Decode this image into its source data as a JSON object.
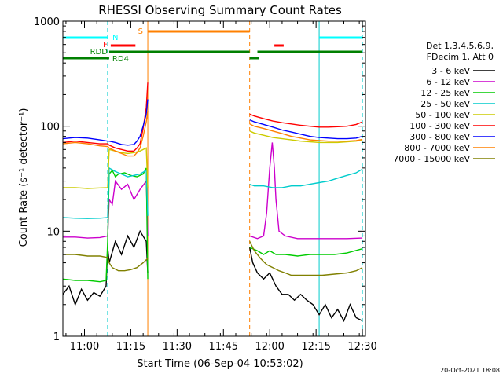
{
  "chart_data": {
    "type": "line",
    "title": "RHESSI Observing Summary Count Rates",
    "xlabel": "Start Time (06-Sep-04 10:53:02)",
    "ylabel": "Count Rate (s⁻¹ detector⁻¹)",
    "yscale": "log",
    "ylim": [
      1,
      1000
    ],
    "xlim": [
      0,
      98
    ],
    "x_unit": "minutes after 10:53:02",
    "x_ticks": [
      {
        "t": 7,
        "label": "11:00"
      },
      {
        "t": 22,
        "label": "11:15"
      },
      {
        "t": 37,
        "label": "11:30"
      },
      {
        "t": 52,
        "label": "11:45"
      },
      {
        "t": 67,
        "label": "12:00"
      },
      {
        "t": 82,
        "label": "12:15"
      },
      {
        "t": 97,
        "label": "12:30"
      }
    ],
    "y_ticks": [
      {
        "v": 1,
        "label": "1"
      },
      {
        "v": 10,
        "label": "10"
      },
      {
        "v": 100,
        "label": "100"
      },
      {
        "v": 1000,
        "label": "1000"
      }
    ],
    "legend_header": [
      "Det 1,3,4,5,6,9,",
      "FDecim 1, Att 0"
    ],
    "legend_placement": "right",
    "series": [
      {
        "name": "3 - 6 keV",
        "color": "#000000",
        "points": [
          [
            0,
            2.5
          ],
          [
            2,
            3
          ],
          [
            4,
            2
          ],
          [
            6,
            2.8
          ],
          [
            8,
            2.2
          ],
          [
            10,
            2.6
          ],
          [
            12,
            2.4
          ],
          [
            14,
            3
          ],
          [
            14.5,
            7
          ],
          [
            15,
            5
          ],
          [
            17,
            8
          ],
          [
            19,
            6
          ],
          [
            21,
            9
          ],
          [
            23,
            7
          ],
          [
            25,
            10
          ],
          [
            27,
            8
          ],
          [
            27.5,
            4
          ],
          null,
          [
            60.5,
            7
          ],
          [
            61.5,
            5
          ],
          [
            63,
            4
          ],
          [
            65,
            3.5
          ],
          [
            67,
            4
          ],
          [
            69,
            3
          ],
          [
            71,
            2.5
          ],
          [
            73,
            2.5
          ],
          [
            75,
            2.2
          ],
          [
            77,
            2.5
          ],
          [
            79,
            2.2
          ],
          [
            81,
            2
          ],
          [
            83,
            1.6
          ],
          [
            85,
            2
          ],
          [
            87,
            1.5
          ],
          [
            89,
            1.8
          ],
          [
            91,
            1.4
          ],
          [
            93,
            2
          ],
          [
            95,
            1.5
          ],
          [
            97,
            1.4
          ]
        ]
      },
      {
        "name": "6 - 12 keV",
        "color": "#cc00cc",
        "points": [
          [
            0,
            8.8
          ],
          [
            4,
            8.8
          ],
          [
            8,
            8.6
          ],
          [
            12,
            8.7
          ],
          [
            14.5,
            9
          ],
          [
            15,
            20
          ],
          [
            16,
            18
          ],
          [
            17,
            30
          ],
          [
            19,
            25
          ],
          [
            21,
            28
          ],
          [
            23,
            20
          ],
          [
            25,
            25
          ],
          [
            27,
            30
          ],
          [
            27.5,
            9
          ],
          null,
          [
            60.5,
            9
          ],
          [
            63,
            8.5
          ],
          [
            65,
            9
          ],
          [
            66,
            15
          ],
          [
            67,
            40
          ],
          [
            67.8,
            70
          ],
          [
            68.5,
            40
          ],
          [
            69,
            20
          ],
          [
            70,
            10
          ],
          [
            72,
            9
          ],
          [
            76,
            8.5
          ],
          [
            80,
            8.5
          ],
          [
            84,
            8.5
          ],
          [
            88,
            8.5
          ],
          [
            92,
            8.5
          ],
          [
            97,
            8.6
          ]
        ]
      },
      {
        "name": "12 - 25 keV",
        "color": "#00cc00",
        "points": [
          [
            0,
            3.5
          ],
          [
            4,
            3.4
          ],
          [
            8,
            3.4
          ],
          [
            12,
            3.3
          ],
          [
            14,
            3.4
          ],
          [
            14.5,
            8
          ],
          [
            15,
            35
          ],
          [
            16,
            38
          ],
          [
            17,
            33
          ],
          [
            18,
            35
          ],
          [
            20,
            36
          ],
          [
            22,
            34
          ],
          [
            24,
            33
          ],
          [
            26,
            35
          ],
          [
            27,
            40
          ],
          [
            27.5,
            3.5
          ],
          null,
          [
            60.5,
            7
          ],
          [
            63,
            6.5
          ],
          [
            65,
            6
          ],
          [
            67,
            6.5
          ],
          [
            69,
            6
          ],
          [
            72,
            6
          ],
          [
            76,
            5.8
          ],
          [
            80,
            6
          ],
          [
            84,
            6
          ],
          [
            88,
            6
          ],
          [
            92,
            6.2
          ],
          [
            97,
            6.8
          ]
        ]
      },
      {
        "name": "25 - 50 keV",
        "color": "#00cccc",
        "points": [
          [
            0,
            13.5
          ],
          [
            4,
            13.3
          ],
          [
            8,
            13.2
          ],
          [
            12,
            13.3
          ],
          [
            14.5,
            13.5
          ],
          [
            15,
            40
          ],
          [
            17,
            37
          ],
          [
            19,
            35
          ],
          [
            21,
            33
          ],
          [
            23,
            34
          ],
          [
            25,
            35
          ],
          [
            27,
            38
          ],
          [
            27.5,
            14
          ],
          null,
          [
            60.5,
            28
          ],
          [
            62,
            27
          ],
          [
            65,
            27
          ],
          [
            68,
            26
          ],
          [
            71,
            26
          ],
          [
            74,
            27
          ],
          [
            77,
            27
          ],
          [
            80,
            28
          ],
          [
            83,
            29
          ],
          [
            86,
            30
          ],
          [
            89,
            32
          ],
          [
            92,
            34
          ],
          [
            95,
            36
          ],
          [
            97,
            39
          ]
        ]
      },
      {
        "name": "50 - 100 keV",
        "color": "#cccc00",
        "points": [
          [
            0,
            26
          ],
          [
            4,
            26
          ],
          [
            8,
            25.5
          ],
          [
            12,
            25.8
          ],
          [
            14.5,
            26
          ],
          [
            15,
            60
          ],
          [
            17,
            58
          ],
          [
            19,
            56
          ],
          [
            21,
            55
          ],
          [
            23,
            56
          ],
          [
            25,
            58
          ],
          [
            27,
            62
          ],
          [
            27.5,
            26
          ],
          null,
          [
            60.5,
            90
          ],
          [
            62,
            86
          ],
          [
            65,
            82
          ],
          [
            68,
            78
          ],
          [
            71,
            76
          ],
          [
            74,
            74
          ],
          [
            77,
            72
          ],
          [
            80,
            71
          ],
          [
            83,
            70
          ],
          [
            86,
            70
          ],
          [
            89,
            70
          ],
          [
            92,
            71
          ],
          [
            95,
            72
          ],
          [
            97,
            74
          ]
        ]
      },
      {
        "name": "100 - 300 keV",
        "color": "#ff0000",
        "points": [
          [
            0,
            70
          ],
          [
            4,
            72
          ],
          [
            8,
            70
          ],
          [
            12,
            68
          ],
          [
            14.5,
            68
          ],
          [
            15,
            66
          ],
          [
            17,
            62
          ],
          [
            19,
            60
          ],
          [
            21,
            58
          ],
          [
            23,
            58
          ],
          [
            24,
            62
          ],
          [
            25,
            68
          ],
          [
            26,
            95
          ],
          [
            27,
            150
          ],
          [
            27.5,
            260
          ],
          null,
          [
            60.5,
            130
          ],
          [
            62,
            125
          ],
          [
            65,
            118
          ],
          [
            68,
            112
          ],
          [
            71,
            108
          ],
          [
            74,
            105
          ],
          [
            77,
            102
          ],
          [
            80,
            100
          ],
          [
            83,
            98
          ],
          [
            86,
            98
          ],
          [
            89,
            99
          ],
          [
            92,
            100
          ],
          [
            95,
            104
          ],
          [
            97,
            110
          ]
        ]
      },
      {
        "name": "300 - 800 keV",
        "color": "#0000ff",
        "points": [
          [
            0,
            76
          ],
          [
            4,
            78
          ],
          [
            8,
            77
          ],
          [
            12,
            74
          ],
          [
            14.5,
            72
          ],
          [
            15,
            72
          ],
          [
            17,
            70
          ],
          [
            19,
            67
          ],
          [
            21,
            66
          ],
          [
            23,
            67
          ],
          [
            24,
            72
          ],
          [
            25,
            80
          ],
          [
            26,
            100
          ],
          [
            27,
            130
          ],
          [
            27.5,
            180
          ],
          null,
          [
            60.5,
            115
          ],
          [
            62,
            110
          ],
          [
            65,
            104
          ],
          [
            68,
            98
          ],
          [
            71,
            92
          ],
          [
            74,
            88
          ],
          [
            77,
            84
          ],
          [
            80,
            80
          ],
          [
            83,
            78
          ],
          [
            86,
            77
          ],
          [
            89,
            76
          ],
          [
            92,
            76
          ],
          [
            95,
            77
          ],
          [
            97,
            80
          ]
        ]
      },
      {
        "name": "800 - 7000 keV",
        "color": "#ff8000",
        "points": [
          [
            0,
            68
          ],
          [
            4,
            70
          ],
          [
            8,
            68
          ],
          [
            12,
            65
          ],
          [
            14.5,
            64
          ],
          [
            15,
            62
          ],
          [
            17,
            58
          ],
          [
            19,
            55
          ],
          [
            21,
            52
          ],
          [
            23,
            52
          ],
          [
            24,
            56
          ],
          [
            25,
            62
          ],
          [
            26,
            80
          ],
          [
            27,
            110
          ],
          [
            27.5,
            140
          ],
          null,
          [
            60.5,
            105
          ],
          [
            62,
            100
          ],
          [
            65,
            95
          ],
          [
            68,
            90
          ],
          [
            71,
            85
          ],
          [
            74,
            80
          ],
          [
            77,
            77
          ],
          [
            80,
            74
          ],
          [
            83,
            73
          ],
          [
            86,
            72
          ],
          [
            89,
            72
          ],
          [
            92,
            72
          ],
          [
            95,
            73
          ],
          [
            97,
            75
          ]
        ]
      },
      {
        "name": "7000 - 15000 keV",
        "color": "#808000",
        "points": [
          [
            0,
            6
          ],
          [
            4,
            6
          ],
          [
            8,
            5.8
          ],
          [
            12,
            5.8
          ],
          [
            14.5,
            5.6
          ],
          [
            15,
            5
          ],
          [
            16,
            4.5
          ],
          [
            18,
            4.2
          ],
          [
            20,
            4.2
          ],
          [
            22,
            4.3
          ],
          [
            24,
            4.5
          ],
          [
            26,
            5
          ],
          [
            27.5,
            5.5
          ],
          null,
          [
            60.5,
            8
          ],
          [
            62,
            6.5
          ],
          [
            64,
            5.5
          ],
          [
            66,
            4.8
          ],
          [
            68,
            4.5
          ],
          [
            70,
            4.2
          ],
          [
            72,
            4
          ],
          [
            74,
            3.8
          ],
          [
            76,
            3.8
          ],
          [
            80,
            3.8
          ],
          [
            84,
            3.8
          ],
          [
            88,
            3.9
          ],
          [
            92,
            4
          ],
          [
            95,
            4.2
          ],
          [
            97,
            4.5
          ]
        ]
      }
    ],
    "annotations": {
      "vertical_lines": [
        {
          "t": 0,
          "color": "#00cccc",
          "style": "solid"
        },
        {
          "t": 14.5,
          "color": "#00cccc",
          "style": "dashed"
        },
        {
          "t": 27.5,
          "color": "#ff8000",
          "style": "solid"
        },
        {
          "t": 60.5,
          "color": "#ff8000",
          "style": "dashed"
        },
        {
          "t": 83,
          "color": "#00cccc",
          "style": "solid"
        },
        {
          "t": 97,
          "color": "#00cccc",
          "style": "dashed"
        }
      ],
      "bars": [
        {
          "label": "N",
          "color": "#00ffff",
          "segments": [
            [
              0,
              14.5
            ],
            [
              83,
              97
            ]
          ],
          "row": 1
        },
        {
          "label": "S",
          "color": "#ff8000",
          "segments": [
            [
              27.5,
              60.5
            ]
          ],
          "row": 0
        },
        {
          "label": "F",
          "color": "#ff0000",
          "segments": [
            [
              15.5,
              23.5
            ],
            [
              68.5,
              71.5
            ]
          ],
          "row": 2
        },
        {
          "label": "RDD",
          "color": "#008000",
          "segments": [
            [
              15,
              60.5
            ],
            [
              63,
              97
            ]
          ],
          "row": 3
        },
        {
          "label": "RD4",
          "color": "#008000",
          "segments": [
            [
              0,
              15
            ],
            [
              60.5,
              63.5
            ]
          ],
          "row": 4
        }
      ]
    }
  },
  "timestamp": "20-Oct-2021 18:08"
}
